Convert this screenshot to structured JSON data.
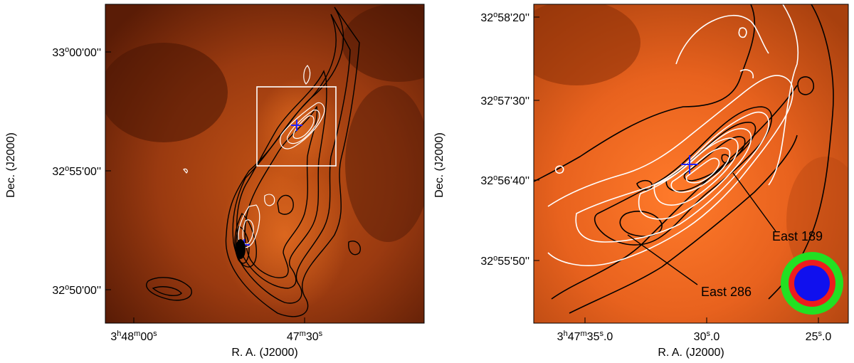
{
  "left_panel": {
    "y_axis_title": "Dec.  (J2000)",
    "x_axis_title": "R. A.  (J2000)",
    "y_ticks": [
      {
        "deg": "33",
        "min": "00",
        "sec": "00"
      },
      {
        "deg": "32",
        "min": "55",
        "sec": "00"
      },
      {
        "deg": "32",
        "min": "50",
        "sec": "00"
      }
    ],
    "x_ticks": [
      {
        "h": "3",
        "m": "48",
        "s": "00"
      },
      {
        "m": "47",
        "s": "30"
      }
    ],
    "markers": [
      "blue-cross",
      "blue-cross"
    ],
    "box": "zoom-region"
  },
  "right_panel": {
    "y_axis_title": "Dec.  (J2000)",
    "x_axis_title": "R. A.  (J2000)",
    "y_ticks": [
      {
        "deg": "32",
        "min": "58",
        "sec": "20"
      },
      {
        "deg": "32",
        "min": "57",
        "sec": "30"
      },
      {
        "deg": "32",
        "min": "56",
        "sec": "40"
      },
      {
        "deg": "32",
        "min": "55",
        "sec": "50"
      }
    ],
    "x_ticks": [
      {
        "h": "3",
        "m": "47",
        "s": "35",
        "frac": ".0"
      },
      {
        "s": "30",
        "frac": ".0"
      },
      {
        "s": "25",
        "frac": ".0"
      }
    ],
    "labels": {
      "east189": "East 189",
      "east286": "East 286"
    },
    "beam_colors": {
      "outer": "#22e022",
      "middle": "#ee1c1c",
      "inner": "#1010ee"
    }
  },
  "colors": {
    "map_dark": "#5a1c06",
    "map_mid": "#b84812",
    "map_bright": "#ff7a2a",
    "marker": "#2222ff"
  }
}
